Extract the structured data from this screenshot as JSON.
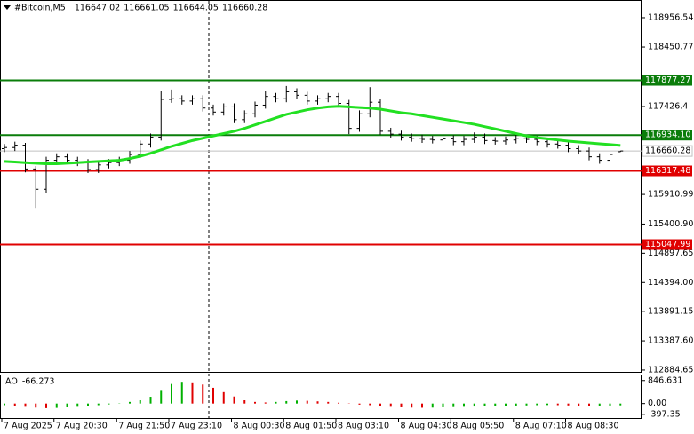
{
  "chart_data": {
    "type": "candlestick",
    "title": "#Bitcoin,M5",
    "header_values": [
      116647.02,
      116661.05,
      116644.05,
      116660.28
    ],
    "categories": [
      "7 Aug 2025",
      null,
      null,
      null,
      null,
      "7 Aug 20:30",
      null,
      null,
      null,
      null,
      null,
      "7 Aug 21:50",
      null,
      null,
      null,
      null,
      "7 Aug 23:10",
      null,
      null,
      null,
      null,
      null,
      "8 Aug 00:30",
      null,
      null,
      null,
      null,
      "8 Aug 01:50",
      null,
      null,
      null,
      null,
      "8 Aug 03:10",
      null,
      null,
      null,
      null,
      null,
      "8 Aug 04:30",
      null,
      null,
      null,
      null,
      "8 Aug 05:50",
      null,
      null,
      null,
      null,
      null,
      "8 Aug 07:10",
      null,
      null,
      null,
      null,
      "8 Aug 08:30",
      null,
      null,
      null,
      null,
      null
    ],
    "open": [
      116700,
      116720,
      116760,
      116350,
      116000,
      116500,
      116560,
      116500,
      116460,
      116340,
      116420,
      116460,
      116500,
      116600,
      116780,
      116900,
      117550,
      117560,
      117520,
      117560,
      117400,
      117330,
      117420,
      117200,
      117300,
      117450,
      117600,
      117560,
      117680,
      117620,
      117520,
      117560,
      117600,
      117480,
      117050,
      117300,
      117500,
      117000,
      116950,
      116900,
      116880,
      116860,
      116850,
      116870,
      116820,
      116860,
      116900,
      116840,
      116830,
      116850,
      116880,
      116860,
      116820,
      116780,
      116760,
      116700,
      116660,
      116560,
      116500,
      116647.02
    ],
    "high": [
      116780,
      116820,
      116800,
      116400,
      116560,
      116620,
      116620,
      116560,
      116520,
      116480,
      116520,
      116560,
      116660,
      116840,
      116960,
      117700,
      117720,
      117620,
      117620,
      117620,
      117460,
      117480,
      117480,
      117360,
      117510,
      117700,
      117660,
      117780,
      117740,
      117680,
      117620,
      117660,
      117660,
      117540,
      117360,
      117760,
      117560,
      117060,
      117010,
      116960,
      116940,
      116920,
      116930,
      116930,
      116920,
      116980,
      116960,
      116900,
      116910,
      116940,
      116940,
      116920,
      116880,
      116840,
      116820,
      116760,
      116720,
      116620,
      116660,
      116661.05
    ],
    "low": [
      116640,
      116660,
      116290,
      115680,
      115940,
      116440,
      116440,
      116400,
      116280,
      116280,
      116360,
      116400,
      116440,
      116540,
      116720,
      116840,
      117490,
      117460,
      117460,
      117340,
      117270,
      117270,
      117140,
      117140,
      117240,
      117390,
      117500,
      117500,
      117560,
      117460,
      117460,
      117500,
      117420,
      116950,
      116990,
      117240,
      116940,
      116890,
      116840,
      116820,
      116800,
      116790,
      116790,
      116760,
      116760,
      116800,
      116780,
      116770,
      116770,
      116790,
      116800,
      116760,
      116720,
      116700,
      116640,
      116600,
      116500,
      116440,
      116440,
      116644.05
    ],
    "close": [
      116720,
      116760,
      116350,
      116000,
      116500,
      116560,
      116500,
      116460,
      116340,
      116420,
      116460,
      116500,
      116600,
      116780,
      116900,
      117550,
      117560,
      117520,
      117560,
      117400,
      117330,
      117420,
      117200,
      117300,
      117450,
      117600,
      117560,
      117680,
      117620,
      117520,
      117560,
      117600,
      117480,
      117050,
      117300,
      117500,
      117000,
      116950,
      116900,
      116880,
      116860,
      116850,
      116870,
      116820,
      116860,
      116900,
      116840,
      116830,
      116850,
      116880,
      116860,
      116820,
      116780,
      116760,
      116700,
      116660,
      116560,
      116500,
      116600,
      116660.28
    ],
    "bar_color": "#000000",
    "ylim": [
      112838,
      119262
    ],
    "yticks": [
      118956.54,
      118450.77,
      117426.4,
      115910.99,
      {
        "value": 115400.9,
        "label": "115400.90"
      },
      114897.65,
      {
        "value": 114394,
        "label": "114394.00"
      },
      113891.15,
      {
        "value": 113387.6,
        "label": "113387.60"
      },
      112884.65
    ],
    "levels": [
      {
        "value": 117877.27,
        "color": "#0a7d0a"
      },
      {
        "value": 116934.1,
        "label": "116934.10",
        "color": "#0a7d0a"
      },
      {
        "value": 116317.48,
        "color": "#e00000"
      },
      {
        "value": 115047.99,
        "color": "#e00000"
      }
    ],
    "last_price_color": "#c0c0c0",
    "ma": {
      "color": "#22e022",
      "values": [
        116480,
        116470,
        116460,
        116450,
        116440,
        116440,
        116450,
        116460,
        116470,
        116480,
        116490,
        116500,
        116530,
        116570,
        116620,
        116680,
        116740,
        116790,
        116840,
        116880,
        116920,
        116960,
        117000,
        117050,
        117110,
        117170,
        117230,
        117290,
        117330,
        117370,
        117400,
        117420,
        117430,
        117420,
        117410,
        117400,
        117380,
        117350,
        117320,
        117300,
        117270,
        117240,
        117210,
        117180,
        117150,
        117120,
        117080,
        117040,
        117000,
        116960,
        116920,
        116890,
        116870,
        116850,
        116830,
        116815,
        116800,
        116785,
        116770,
        116755
      ]
    },
    "ao": {
      "label": "AO",
      "values": [
        -60,
        -90,
        -120,
        -150,
        -170,
        -160,
        -140,
        -120,
        -90,
        -60,
        -30,
        10,
        60,
        120,
        250,
        500,
        720,
        800,
        780,
        700,
        580,
        420,
        260,
        120,
        60,
        40,
        60,
        90,
        110,
        100,
        80,
        60,
        30,
        -10,
        -40,
        -60,
        -90,
        -120,
        -140,
        -150,
        -155,
        -150,
        -140,
        -130,
        -120,
        -110,
        -100,
        -90,
        -80,
        -75,
        -70,
        -60,
        -55,
        -60,
        -70,
        -80,
        -90,
        -85,
        -75,
        -66.273
      ],
      "up_color": "#00b000",
      "down_color": "#e00000",
      "ylim": [
        -533,
        1035
      ],
      "yticks": [
        846.631,
        {
          "value": 0,
          "label": "0.00"
        },
        -397.35
      ]
    }
  }
}
